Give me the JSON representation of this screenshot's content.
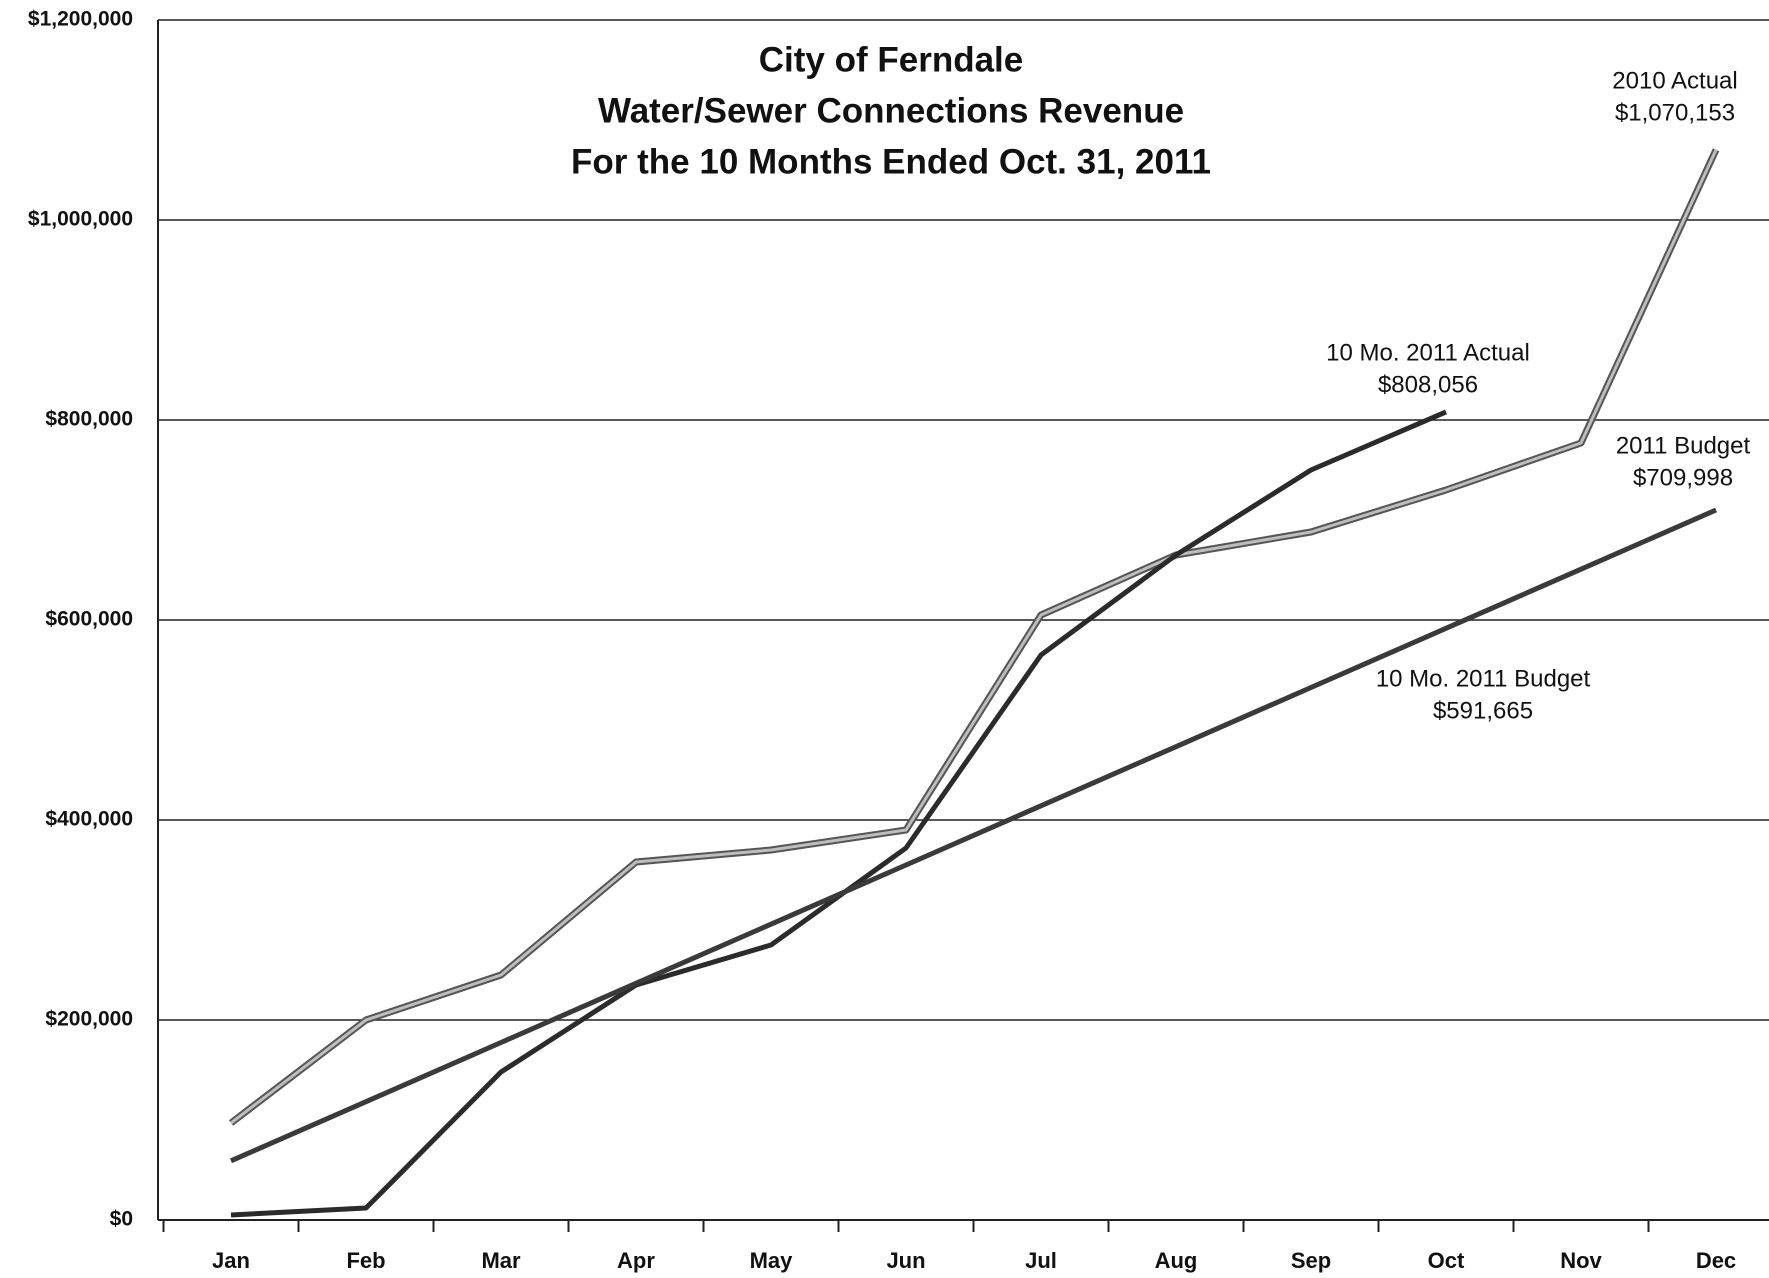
{
  "chart_data": {
    "type": "line",
    "title": [
      "City of Ferndale",
      "Water/Sewer Connections Revenue",
      "For the 10 Months Ended Oct. 31, 2011"
    ],
    "categories": [
      "Jan",
      "Feb",
      "Mar",
      "Apr",
      "May",
      "Jun",
      "Jul",
      "Aug",
      "Sep",
      "Oct",
      "Nov",
      "Dec"
    ],
    "series": [
      {
        "name": "2010 Actual",
        "color": "#bdbdbd",
        "end_label": "$1,070,153",
        "values": [
          97000,
          200000,
          245000,
          358000,
          370000,
          390000,
          605000,
          665000,
          688000,
          730000,
          777000,
          1070153
        ]
      },
      {
        "name": "10 Mo. 2011 Actual",
        "color": "#2b2b2b",
        "end_label": "$808,056",
        "values": [
          5000,
          12000,
          148000,
          235000,
          275000,
          372000,
          565000,
          665000,
          750000,
          808056,
          null,
          null
        ]
      },
      {
        "name": "2011 Budget",
        "color": "#3a3a3a",
        "end_label": "$709,998",
        "values": [
          59167,
          118333,
          177500,
          236666,
          295833,
          354999,
          414166,
          473332,
          532499,
          591665,
          650832,
          709998
        ]
      }
    ],
    "annotations": [
      {
        "text": "10 Mo. 2011 Budget",
        "value_label": "$591,665"
      }
    ],
    "ylim": [
      0,
      1200000
    ],
    "yticks": [
      {
        "value": 0,
        "label": "$0"
      },
      {
        "value": 200000,
        "label": "$200,000"
      },
      {
        "value": 400000,
        "label": "$400,000"
      },
      {
        "value": 600000,
        "label": "$600,000"
      },
      {
        "value": 800000,
        "label": "$800,000"
      },
      {
        "value": 1000000,
        "label": "$1,000,000"
      },
      {
        "value": 1200000,
        "label": "$1,200,000"
      }
    ],
    "grid": true
  }
}
